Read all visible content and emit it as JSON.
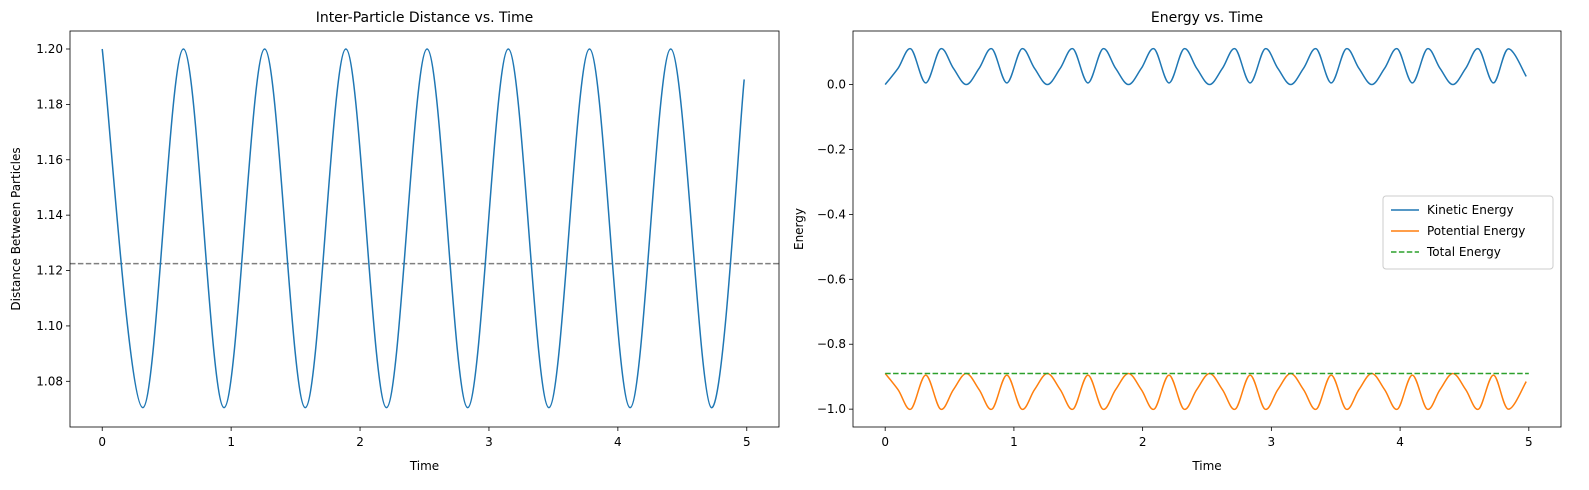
{
  "chart_data": [
    {
      "type": "line",
      "title": "Inter-Particle Distance vs. Time",
      "xlabel": "Time",
      "ylabel": "Distance Between Particles",
      "xlim": [
        -0.25,
        5.25
      ],
      "ylim": [
        1.0635,
        1.2065
      ],
      "xticks": [
        0,
        1,
        2,
        3,
        4,
        5
      ],
      "xtick_labels": [
        "0",
        "1",
        "2",
        "3",
        "4",
        "5"
      ],
      "yticks": [
        1.08,
        1.1,
        1.12,
        1.14,
        1.16,
        1.18,
        1.2
      ],
      "ytick_labels": [
        "1.08",
        "1.10",
        "1.12",
        "1.14",
        "1.16",
        "1.18",
        "1.20"
      ],
      "grid": false,
      "series": [
        {
          "color": "#1f77b4",
          "style": "solid",
          "x": [
            0.0,
            0.315,
            0.63,
            0.945,
            1.26,
            1.575,
            1.89,
            2.205,
            2.52,
            2.835,
            3.15,
            3.465,
            3.78,
            4.095,
            4.41,
            4.725,
            4.98
          ],
          "values": [
            1.2,
            1.0705,
            1.2,
            1.0705,
            1.2,
            1.0705,
            1.2,
            1.0705,
            1.2,
            1.0705,
            1.2,
            1.0705,
            1.2,
            1.0705,
            1.2,
            1.0705,
            1.189
          ]
        }
      ],
      "reference_lines": [
        {
          "orientation": "horizontal",
          "y": 1.1225,
          "color": "#7f7f7f",
          "style": "dashed"
        }
      ]
    },
    {
      "type": "line",
      "title": "Energy vs. Time",
      "xlabel": "Time",
      "ylabel": "Energy",
      "xlim": [
        -0.25,
        5.25
      ],
      "ylim": [
        -1.055,
        0.165
      ],
      "xticks": [
        0,
        1,
        2,
        3,
        4,
        5
      ],
      "xtick_labels": [
        "0",
        "1",
        "2",
        "3",
        "4",
        "5"
      ],
      "yticks": [
        -1.0,
        -0.8,
        -0.6,
        -0.4,
        -0.2,
        0.0
      ],
      "ytick_labels": [
        "−1.0",
        "−0.8",
        "−0.6",
        "−0.4",
        "−0.2",
        "0.0"
      ],
      "grid": false,
      "legend_position": "center-right",
      "series": [
        {
          "name": "Kinetic Energy",
          "color": "#1f77b4",
          "style": "solid",
          "x": [
            0.0,
            0.1,
            0.2,
            0.315,
            0.43,
            0.53,
            0.63,
            0.73,
            0.83,
            0.945,
            1.06,
            1.16,
            1.26,
            1.36,
            1.46,
            1.575,
            1.69,
            1.79,
            1.89,
            1.99,
            2.09,
            2.205,
            2.32,
            2.42,
            2.52,
            2.62,
            2.72,
            2.835,
            2.95,
            3.05,
            3.15,
            3.25,
            3.35,
            3.465,
            3.58,
            3.68,
            3.78,
            3.88,
            3.98,
            4.095,
            4.21,
            4.31,
            4.41,
            4.51,
            4.61,
            4.725,
            4.84,
            4.98
          ],
          "values": [
            0.0,
            0.05,
            0.11,
            0.005,
            0.11,
            0.05,
            0.0,
            0.05,
            0.11,
            0.005,
            0.11,
            0.05,
            0.0,
            0.05,
            0.11,
            0.005,
            0.11,
            0.05,
            0.0,
            0.05,
            0.11,
            0.005,
            0.11,
            0.05,
            0.0,
            0.05,
            0.11,
            0.005,
            0.11,
            0.05,
            0.0,
            0.05,
            0.11,
            0.005,
            0.11,
            0.05,
            0.0,
            0.05,
            0.11,
            0.005,
            0.11,
            0.05,
            0.0,
            0.05,
            0.11,
            0.005,
            0.11,
            0.025
          ]
        },
        {
          "name": "Potential Energy",
          "color": "#ff7f0e",
          "style": "solid",
          "x": [
            0.0,
            0.1,
            0.2,
            0.315,
            0.43,
            0.53,
            0.63,
            0.73,
            0.83,
            0.945,
            1.06,
            1.16,
            1.26,
            1.36,
            1.46,
            1.575,
            1.69,
            1.79,
            1.89,
            1.99,
            2.09,
            2.205,
            2.32,
            2.42,
            2.52,
            2.62,
            2.72,
            2.835,
            2.95,
            3.05,
            3.15,
            3.25,
            3.35,
            3.465,
            3.58,
            3.68,
            3.78,
            3.88,
            3.98,
            4.095,
            4.21,
            4.31,
            4.41,
            4.51,
            4.61,
            4.725,
            4.84,
            4.98
          ],
          "values": [
            -0.89,
            -0.94,
            -1.0,
            -0.895,
            -1.0,
            -0.94,
            -0.89,
            -0.94,
            -1.0,
            -0.895,
            -1.0,
            -0.94,
            -0.89,
            -0.94,
            -1.0,
            -0.895,
            -1.0,
            -0.94,
            -0.89,
            -0.94,
            -1.0,
            -0.895,
            -1.0,
            -0.94,
            -0.89,
            -0.94,
            -1.0,
            -0.895,
            -1.0,
            -0.94,
            -0.89,
            -0.94,
            -1.0,
            -0.895,
            -1.0,
            -0.94,
            -0.89,
            -0.94,
            -1.0,
            -0.895,
            -1.0,
            -0.94,
            -0.89,
            -0.94,
            -1.0,
            -0.895,
            -1.0,
            -0.915
          ]
        },
        {
          "name": "Total Energy",
          "color": "#2ca02c",
          "style": "dashed",
          "x": [
            0.0,
            5.0
          ],
          "values": [
            -0.89,
            -0.89
          ]
        }
      ]
    }
  ]
}
